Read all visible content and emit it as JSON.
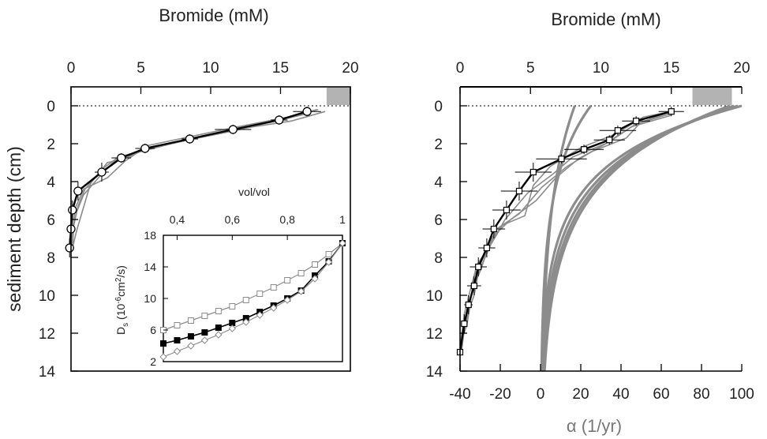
{
  "chart_data": [
    {
      "type": "line",
      "title": "Bromide (mM)",
      "xlabel": "",
      "ylabel": "sediment depth (cm)",
      "xlim": [
        0,
        20
      ],
      "ylim": [
        14,
        -1
      ],
      "xticks": [
        "0",
        "5",
        "10",
        "15",
        "20"
      ],
      "yticks": [
        "0",
        "2",
        "4",
        "6",
        "8",
        "10",
        "12",
        "14"
      ],
      "shaded_band_x": [
        18.3,
        20
      ],
      "series": [
        {
          "style": "grey",
          "x": [
            17.6,
            15.2,
            11.8,
            8.4,
            5.4,
            3.4,
            2.3,
            1.0,
            0.5,
            0.2,
            0.1
          ],
          "y": [
            0.2,
            0.7,
            1.3,
            1.8,
            2.3,
            2.7,
            3.3,
            4.4,
            5.3,
            6.3,
            7.5
          ]
        },
        {
          "style": "grey",
          "x": [
            18.2,
            15.8,
            12.2,
            8.8,
            5.6,
            3.8,
            2.6,
            1.4,
            0.8,
            0.4,
            0.1
          ],
          "y": [
            0.3,
            0.8,
            1.2,
            1.7,
            2.2,
            2.8,
            3.0,
            4.1,
            5.6,
            6.6,
            7.5
          ]
        },
        {
          "style": "grey",
          "x": [
            17.0,
            14.7,
            11.4,
            8.2,
            5.1,
            3.4,
            2.2,
            0.9,
            0.4,
            0.1,
            0.0
          ],
          "y": [
            0.4,
            0.8,
            1.3,
            1.8,
            2.4,
            2.7,
            3.6,
            4.7,
            5.6,
            6.5,
            7.5
          ]
        },
        {
          "style": "grey",
          "x": [
            17.7,
            15.5,
            12.0,
            8.7,
            5.5,
            3.9,
            2.6,
            0.9,
            0.3,
            0.1,
            0.0
          ],
          "y": [
            0.2,
            0.6,
            1.1,
            1.6,
            2.1,
            2.9,
            3.8,
            4.4,
            5.4,
            6.6,
            7.5
          ]
        },
        {
          "style": "mean",
          "marker": "circle",
          "x": [
            16.9,
            14.9,
            11.6,
            8.5,
            5.3,
            3.6,
            2.2,
            0.5,
            0.1,
            0.0,
            -0.1
          ],
          "y": [
            0.3,
            0.75,
            1.25,
            1.75,
            2.25,
            2.75,
            3.5,
            4.5,
            5.5,
            6.5,
            7.5
          ],
          "xerr": [
            1.0,
            0.6,
            1.3,
            0.6,
            0.7,
            0.7,
            0.5,
            0.2,
            0.1,
            0.1,
            0.1
          ],
          "yerr": [
            0.25,
            0.25,
            0.25,
            0.25,
            0.25,
            0.25,
            0.5,
            0.5,
            0.5,
            0.5,
            0.5
          ]
        }
      ]
    },
    {
      "type": "scatter",
      "xlabel": "vol/vol",
      "ylabel": "Ds (10-6cm2/s)",
      "ylabel_parts": [
        "D",
        "s",
        " (10",
        "-6",
        "cm",
        "2",
        "/s)"
      ],
      "xlim": [
        0.35,
        1.0
      ],
      "ylim": [
        2,
        18
      ],
      "xticks": [
        "0,4",
        "0,6",
        "0,8",
        "1"
      ],
      "xtick_values": [
        0.4,
        0.6,
        0.8,
        1.0
      ],
      "yticks": [
        "2",
        "6",
        "10",
        "14",
        "18"
      ],
      "x": [
        0.35,
        0.4,
        0.45,
        0.5,
        0.55,
        0.6,
        0.65,
        0.7,
        0.75,
        0.8,
        0.85,
        0.9,
        0.95,
        1.0
      ],
      "series": [
        {
          "marker": "open-square",
          "values": [
            6.0,
            6.6,
            7.2,
            7.8,
            8.4,
            9.0,
            9.8,
            10.6,
            11.4,
            12.3,
            13.2,
            14.3,
            15.6,
            17.0
          ]
        },
        {
          "marker": "filled-square",
          "values": [
            4.3,
            4.7,
            5.2,
            5.7,
            6.3,
            6.9,
            7.5,
            8.3,
            9.1,
            10.0,
            11.0,
            12.9,
            14.7,
            17.0
          ]
        },
        {
          "marker": "open-diamond",
          "values": [
            2.6,
            3.3,
            4.0,
            4.7,
            5.4,
            6.2,
            7.0,
            7.9,
            8.8,
            9.8,
            10.9,
            12.5,
            14.6,
            17.0
          ]
        }
      ]
    },
    {
      "type": "line",
      "title": "Bromide (mM)",
      "xlabel": "α (1/yr)",
      "xlim_top": [
        0,
        20
      ],
      "xlim_bottom": [
        -40,
        100
      ],
      "ylim": [
        14,
        -1
      ],
      "xticks_top": [
        "0",
        "5",
        "10",
        "15",
        "20"
      ],
      "xticks_bottom": [
        "-40",
        "-20",
        "0",
        "20",
        "40",
        "60",
        "80",
        "100"
      ],
      "yticks": [
        "0",
        "2",
        "4",
        "6",
        "8",
        "10",
        "12",
        "14"
      ],
      "shaded_band_x": [
        16.5,
        19.3
      ],
      "bromide_series": [
        {
          "style": "grey",
          "x": [
            15.0,
            13.0,
            11.0,
            8.6,
            6.4,
            5.2,
            4.6,
            3.0,
            2.2,
            1.3,
            1.0,
            0.7,
            0.5,
            0.2,
            0.0
          ],
          "y": [
            0.3,
            0.6,
            1.5,
            2.2,
            3.2,
            4.2,
            5.8,
            6.3,
            7.3,
            8.8,
            10.0,
            10.6,
            11.5,
            12.2,
            13.0
          ]
        },
        {
          "style": "grey",
          "x": [
            15.0,
            12.8,
            11.8,
            9.4,
            7.6,
            5.8,
            4.2,
            2.6,
            1.8,
            1.0,
            0.7,
            0.3,
            0.1
          ],
          "y": [
            0.4,
            0.9,
            1.7,
            2.4,
            3.2,
            4.3,
            5.7,
            6.5,
            7.8,
            9.0,
            10.5,
            11.8,
            13.0
          ]
        },
        {
          "style": "grey",
          "x": [
            15.0,
            12.2,
            10.6,
            8.4,
            6.8,
            5.4,
            3.6,
            2.2,
            1.5,
            1.0,
            0.5,
            0.2,
            0.1
          ],
          "y": [
            0.5,
            1.1,
            1.9,
            2.8,
            3.8,
            5.0,
            6.0,
            7.0,
            8.6,
            9.5,
            10.8,
            12.0,
            13.0
          ]
        },
        {
          "style": "grey",
          "x": [
            14.6,
            12.4,
            10.3,
            8.0,
            6.6,
            4.8,
            3.2,
            2.0,
            1.2,
            0.7,
            0.3,
            0.1,
            0.0
          ],
          "y": [
            0.4,
            1.0,
            2.0,
            2.7,
            3.6,
            4.6,
            6.0,
            7.5,
            8.4,
            9.8,
            11.0,
            12.2,
            13.0
          ]
        },
        {
          "style": "mean",
          "marker": "open-square",
          "x": [
            15.0,
            12.5,
            11.2,
            10.6,
            8.8,
            7.2,
            5.2,
            4.2,
            3.3,
            2.4,
            1.9,
            1.3,
            1.0,
            0.6,
            0.3,
            0.0
          ],
          "y": [
            0.3,
            0.8,
            1.3,
            1.8,
            2.3,
            2.8,
            3.5,
            4.5,
            5.5,
            6.5,
            7.5,
            8.5,
            9.5,
            10.5,
            11.5,
            13.0
          ],
          "xerr": [
            0.9,
            1.0,
            1.3,
            1.1,
            1.4,
            1.8,
            1.3,
            1.3,
            1.0,
            0.8,
            0.6,
            0.6,
            0.5,
            0.3,
            0.2,
            0.1
          ],
          "yerr": [
            0.25,
            0.25,
            0.25,
            0.25,
            0.25,
            0.25,
            0.5,
            0.5,
            0.5,
            0.5,
            0.5,
            0.5,
            0.5,
            0.5,
            0.5,
            0.5
          ]
        }
      ],
      "alpha_curves": [
        {
          "alpha_at_surface": 25,
          "alpha_at_14cm": 0.5
        },
        {
          "alpha_at_surface": 17,
          "alpha_at_14cm": 1.0
        },
        {
          "alpha_at_surface": 100,
          "alpha_at_14cm": 0.8
        },
        {
          "alpha_at_surface": 98,
          "alpha_at_14cm": 1.2
        },
        {
          "alpha_at_surface": 96,
          "alpha_at_14cm": 1.6
        },
        {
          "alpha_at_surface": 94,
          "alpha_at_14cm": 2.0
        }
      ]
    }
  ]
}
